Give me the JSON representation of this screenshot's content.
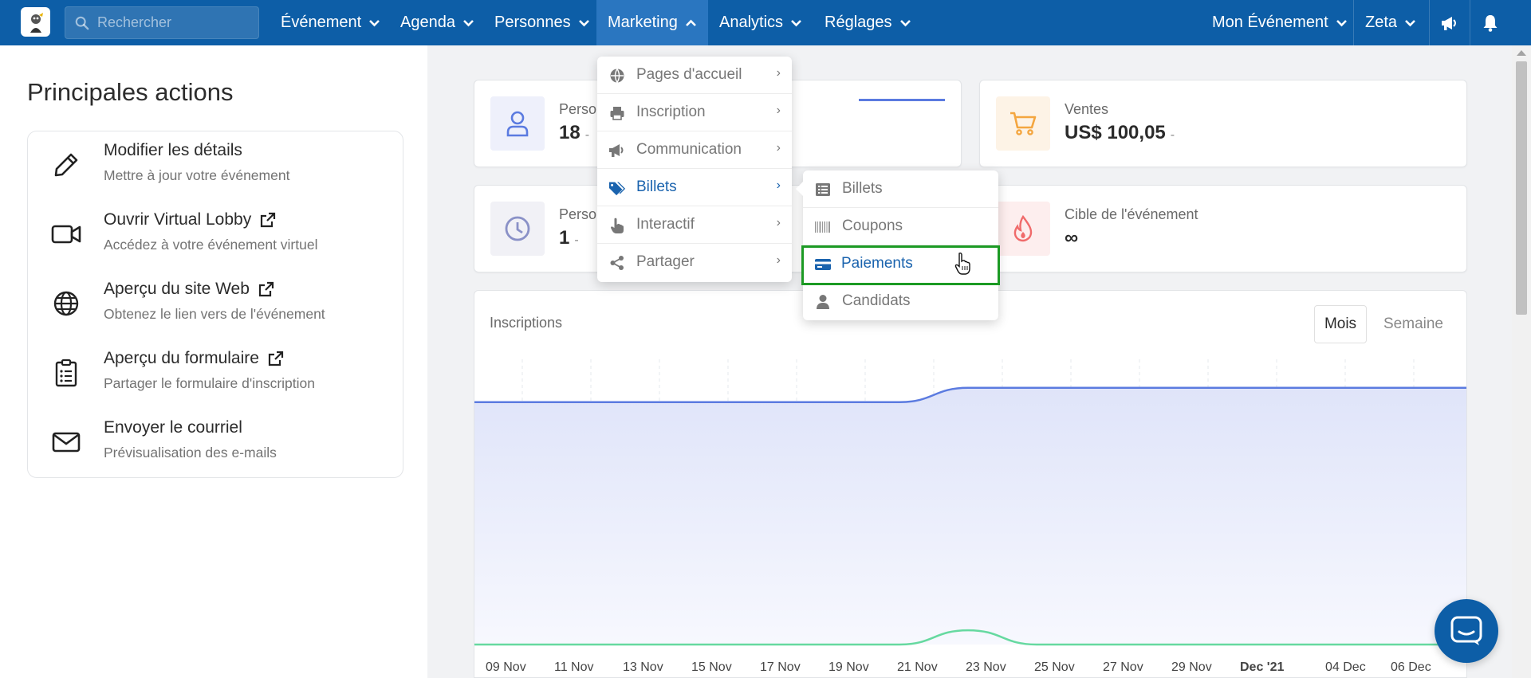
{
  "navbar": {
    "search_placeholder": "Rechercher",
    "items": [
      {
        "label": "Événement"
      },
      {
        "label": "Agenda"
      },
      {
        "label": "Personnes"
      },
      {
        "label": "Marketing"
      },
      {
        "label": "Analytics"
      },
      {
        "label": "Réglages"
      }
    ],
    "right": {
      "event_label": "Mon Événement",
      "user_label": "Zeta"
    }
  },
  "left": {
    "title": "Principales actions",
    "actions": [
      {
        "title": "Modifier les détails",
        "subtitle": "Mettre à jour votre événement",
        "icon": "pencil-icon"
      },
      {
        "title": "Ouvrir Virtual Lobby",
        "subtitle": "Accédez à votre événement virtuel",
        "icon": "video-camera-icon"
      },
      {
        "title": "Aperçu du site Web",
        "subtitle": "Obtenez le lien vers de l'événement",
        "icon": "globe-icon"
      },
      {
        "title": "Aperçu du formulaire",
        "subtitle": "Partager le formulaire d'inscription",
        "icon": "clipboard-icon"
      },
      {
        "title": "Envoyer le courriel",
        "subtitle": "Prévisualisation des e-mails",
        "icon": "envelope-icon"
      }
    ]
  },
  "stats": {
    "card1": {
      "label": "Perso",
      "value": "18",
      "dash": "-"
    },
    "card2": {
      "label": "Ventes",
      "value": "US$ 100,05",
      "dash": "-"
    },
    "card3": {
      "label": "Perso",
      "value": "1",
      "dash": "-"
    },
    "card4": {
      "label": "Cible de l'événement",
      "value": "∞"
    }
  },
  "chart": {
    "title": "Inscriptions",
    "toggle_mois": "Mois",
    "toggle_semaine": "Semaine"
  },
  "chart_data": {
    "type": "area",
    "title": "Inscriptions",
    "x": [
      "09 Nov",
      "11 Nov",
      "13 Nov",
      "15 Nov",
      "17 Nov",
      "19 Nov",
      "21 Nov",
      "23 Nov",
      "25 Nov",
      "27 Nov",
      "29 Nov",
      "Dec '21",
      "04 Dec",
      "06 Dec"
    ],
    "bold_tick": "Dec '21",
    "series": [
      {
        "values": [
          17,
          17,
          17,
          17,
          17,
          17,
          17,
          18,
          18,
          18,
          18,
          18,
          18,
          18
        ],
        "color": "#5b7be0"
      },
      {
        "values": [
          0,
          0,
          0,
          0,
          0,
          0,
          0,
          1,
          0,
          0,
          0,
          0,
          0,
          0
        ],
        "color": "#66d9a0"
      }
    ],
    "ylim": [
      0,
      20
    ],
    "grid": true
  },
  "dropdown": {
    "items": [
      {
        "label": "Pages d'accueil",
        "icon": "globe-icon"
      },
      {
        "label": "Inscription",
        "icon": "printer-icon"
      },
      {
        "label": "Communication",
        "icon": "megaphone-icon"
      },
      {
        "label": "Billets",
        "icon": "tags-icon",
        "selected": true
      },
      {
        "label": "Interactif",
        "icon": "pointer-hand-icon"
      },
      {
        "label": "Partager",
        "icon": "share-icon"
      }
    ],
    "arrow": "›"
  },
  "submenu": {
    "items": [
      {
        "label": "Billets",
        "icon": "list-icon"
      },
      {
        "label": "Coupons",
        "icon": "barcode-icon"
      },
      {
        "label": "Paiements",
        "icon": "credit-card-icon",
        "highlighted": true
      },
      {
        "label": "Candidats",
        "icon": "user-icon"
      }
    ]
  },
  "colors": {
    "navbar": "#0d5ea7",
    "nav_active": "#2a76c0",
    "accent": "#1a63ae",
    "highlight_border": "#1c9a24"
  }
}
